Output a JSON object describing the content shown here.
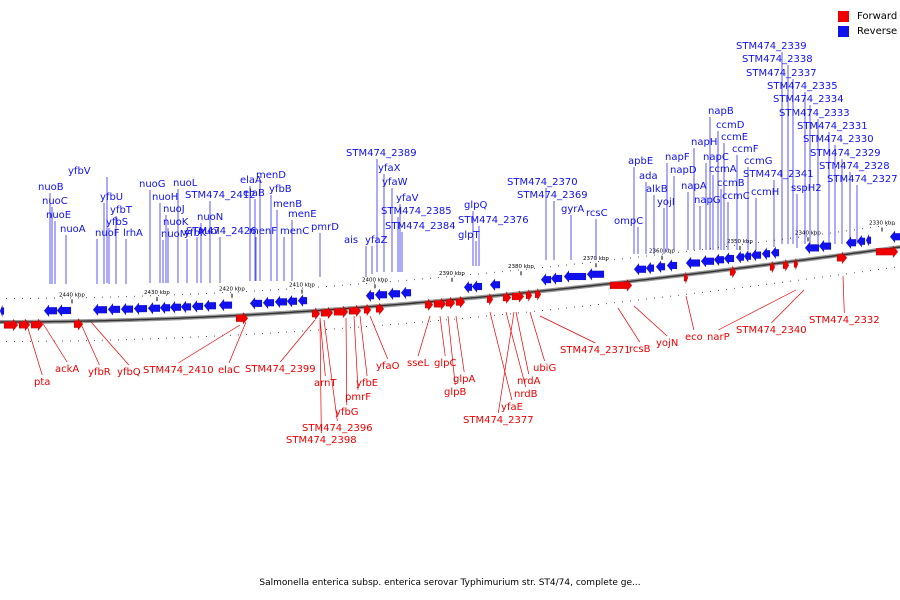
{
  "legend": {
    "forward_label": "Forward",
    "reverse_label": "Reverse",
    "forward_color": "#ee0000",
    "reverse_color": "#1111ee"
  },
  "caption": "Salmonella enterica subsp. enterica serovar Typhimurium str. ST4/74, complete ge...",
  "ticks": [
    "2440 kbp",
    "2430 kbp",
    "2420 kbp",
    "2410 kbp",
    "2400 kbp",
    "2390 kbp",
    "2380 kbp",
    "2370 kbp",
    "2360 kbp",
    "2350 kbp",
    "2340 kbp",
    "2330 kbp"
  ],
  "reverse_labels": [
    "STM474_2339",
    "STM474_2338",
    "STM474_2337",
    "STM474_2335",
    "STM474_2334",
    "STM474_2333",
    "STM474_2331",
    "STM474_2330",
    "STM474_2329",
    "STM474_2328",
    "STM474_2327",
    "STM474_2341",
    "napB",
    "ccmD",
    "ccmE",
    "napH",
    "ccmF",
    "napC",
    "ccmG",
    "ccmA",
    "ccmB",
    "ccmH",
    "sspH2",
    "ccmC",
    "napF",
    "napD",
    "napA",
    "napG",
    "apbE",
    "ada",
    "alkB",
    "yojI",
    "ompC",
    "STM474_2370",
    "STM474_2369",
    "gyrA",
    "rcsC",
    "glpQ",
    "STM474_2376",
    "glpT",
    "STM474_2389",
    "yfaX",
    "yfaW",
    "yfaV",
    "STM474_2385",
    "STM474_2384",
    "yfaZ",
    "ais",
    "pmrD",
    "menD",
    "yfbB",
    "menB",
    "menE",
    "elaA",
    "elaB",
    "menF",
    "menC",
    "nuoG",
    "nuoL",
    "STM474_2412",
    "nuoH",
    "nuoJ",
    "nuoN",
    "nuoK",
    "yfbK",
    "nuoI",
    "nuoM",
    "STM474_2426",
    "yfbV",
    "nuoB",
    "yfbU",
    "nuoC",
    "yfbT",
    "nuoE",
    "yfbS",
    "nuoA",
    "nuoF",
    "lrhA"
  ],
  "forward_labels": [
    "pta",
    "ackA",
    "yfbR",
    "yfbQ",
    "STM474_2410",
    "elaC",
    "STM474_2399",
    "arnT",
    "STM474_2396",
    "STM474_2398",
    "yfbG",
    "pmrF",
    "yfbE",
    "yfaO",
    "sseL",
    "glpC",
    "glpA",
    "glpB",
    "nrdB",
    "yfaE",
    "nrdA",
    "STM474_2377",
    "ubiG",
    "STM474_2371",
    "rcsB",
    "yojN",
    "eco",
    "narP",
    "STM474_2340",
    "STM474_2332"
  ]
}
